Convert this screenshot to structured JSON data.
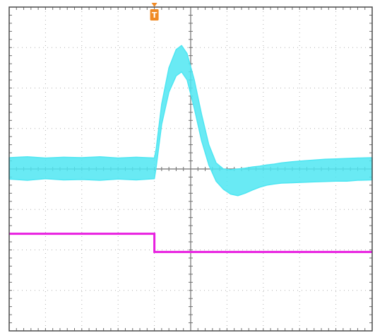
{
  "chart_data": {
    "type": "line",
    "title": "",
    "xlabel": "",
    "ylabel": "",
    "grid": true,
    "divisions": {
      "x": 10,
      "y": 8
    },
    "xlim": [
      0,
      10
    ],
    "ylim": [
      -4,
      4
    ],
    "trigger": {
      "label": "T",
      "x": 4.0,
      "color": "#f08a24"
    },
    "series": [
      {
        "color": "#4fe6f2",
        "style": "band",
        "x": [
          0,
          0.5,
          1,
          1.5,
          2,
          2.5,
          3,
          3.5,
          4,
          4.05,
          4.2,
          4.4,
          4.6,
          4.75,
          4.9,
          5.1,
          5.3,
          5.5,
          5.7,
          5.9,
          6.1,
          6.3,
          6.5,
          6.7,
          6.9,
          7.1,
          7.3,
          7.5,
          7.8,
          8.1,
          8.4,
          8.7,
          9.0,
          9.3,
          9.6,
          10
        ],
        "upper": [
          0.28,
          0.3,
          0.27,
          0.29,
          0.28,
          0.3,
          0.27,
          0.29,
          0.27,
          0.5,
          1.6,
          2.5,
          2.95,
          3.05,
          2.85,
          2.2,
          1.35,
          0.6,
          0.15,
          0.0,
          -0.02,
          0.0,
          0.02,
          0.05,
          0.07,
          0.1,
          0.12,
          0.15,
          0.18,
          0.2,
          0.22,
          0.24,
          0.25,
          0.26,
          0.27,
          0.28
        ],
        "lower": [
          -0.25,
          -0.28,
          -0.24,
          -0.27,
          -0.26,
          -0.28,
          -0.25,
          -0.27,
          -0.24,
          0.05,
          1.1,
          1.9,
          2.3,
          2.4,
          2.2,
          1.5,
          0.7,
          0.1,
          -0.3,
          -0.5,
          -0.62,
          -0.66,
          -0.6,
          -0.52,
          -0.45,
          -0.4,
          -0.37,
          -0.35,
          -0.34,
          -0.33,
          -0.32,
          -0.31,
          -0.3,
          -0.3,
          -0.28,
          -0.27
        ]
      },
      {
        "color": "#e81ee0",
        "style": "line",
        "x": [
          0,
          4.0,
          4.0,
          10
        ],
        "y": [
          -1.6,
          -1.6,
          -2.05,
          -2.05
        ]
      }
    ]
  }
}
